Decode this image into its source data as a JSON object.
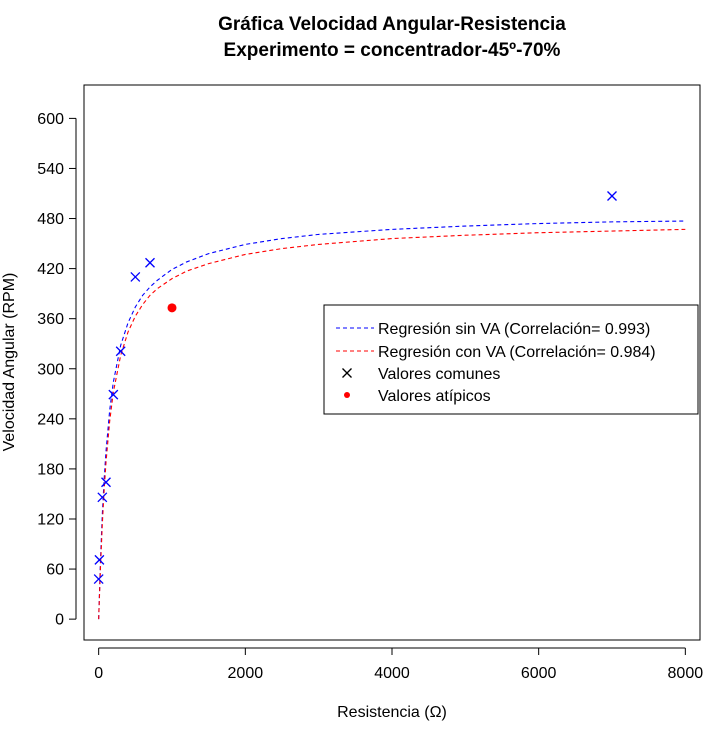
{
  "chart_data": {
    "type": "scatter",
    "title": "Gráfica Velocidad Angular-Resistencia",
    "subtitle": "Experimento = concentrador-45º-70%",
    "xlabel": "Resistencia (Ω)",
    "ylabel": "Velocidad Angular (RPM)",
    "xlim": [
      -200,
      8200
    ],
    "ylim": [
      -25,
      640
    ],
    "xticks": [
      0,
      2000,
      4000,
      6000,
      8000
    ],
    "yticks": [
      0,
      60,
      120,
      180,
      240,
      300,
      360,
      420,
      480,
      540,
      600
    ],
    "grid": false,
    "legend_position": "right",
    "series": [
      {
        "name": "Regresión sin VA (Correlación= 0.993)",
        "kind": "line",
        "style": "dashed",
        "color": "#0000ff",
        "x": [
          0,
          25,
          50,
          75,
          100,
          150,
          200,
          300,
          400,
          500,
          600,
          700,
          800,
          1000,
          1200,
          1500,
          2000,
          2500,
          3000,
          4000,
          5000,
          6000,
          7000,
          8000
        ],
        "y": [
          0,
          71,
          126,
          168,
          201,
          250,
          284,
          328,
          355,
          374,
          388,
          398,
          406,
          419,
          428,
          438,
          449,
          456,
          461,
          467,
          471,
          474,
          476,
          477
        ]
      },
      {
        "name": "Regresión con VA (Correlación= 0.984)",
        "kind": "line",
        "style": "dashed",
        "color": "#ff0000",
        "x": [
          0,
          25,
          50,
          75,
          100,
          150,
          200,
          300,
          400,
          500,
          600,
          700,
          800,
          1000,
          1200,
          1500,
          2000,
          2500,
          3000,
          4000,
          5000,
          6000,
          7000,
          8000
        ],
        "y": [
          0,
          63,
          114,
          155,
          188,
          237,
          272,
          316,
          344,
          363,
          377,
          388,
          396,
          408,
          417,
          426,
          437,
          444,
          449,
          456,
          460,
          463,
          465,
          467
        ]
      },
      {
        "name": "Valores comunes",
        "kind": "points",
        "marker": "x",
        "color": "#0000ff",
        "x": [
          0,
          10,
          50,
          100,
          200,
          300,
          500,
          700,
          7000
        ],
        "y": [
          48,
          71,
          146,
          164,
          269,
          321,
          410,
          427,
          507
        ]
      },
      {
        "name": "Valores atípicos",
        "kind": "points",
        "marker": "dot",
        "color": "#ff0000",
        "x": [
          1000
        ],
        "y": [
          373
        ]
      }
    ]
  }
}
